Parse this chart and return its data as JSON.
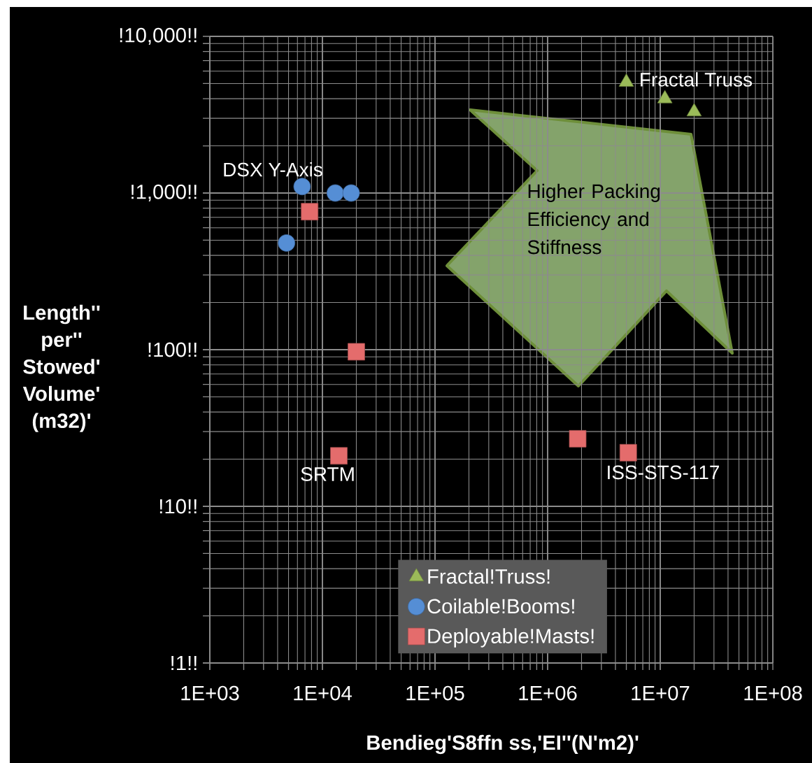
{
  "chart_data": {
    "type": "scatter",
    "xlabel": "Bendieg'S8ffn  ss,'EI''(N'm2)'",
    "ylabel": "Length'' per'' Stowed' Volume' (m32)'",
    "log": "xy",
    "grid": true,
    "legend": "bottom",
    "xlim": [
      1000,
      100000000
    ],
    "xticks": [
      {
        "value": 1000,
        "label": "1E+03"
      },
      {
        "value": 10000,
        "label": "1E+04"
      },
      {
        "value": 100000,
        "label": "1E+05"
      },
      {
        "value": 1000000,
        "label": "1E+06"
      },
      {
        "value": 10000000,
        "label": "1E+07"
      },
      {
        "value": 100000000,
        "label": "1E+08"
      }
    ],
    "ylim": [
      1,
      10000
    ],
    "yticks": [
      {
        "value": 1,
        "label": "!1!!"
      },
      {
        "value": 10,
        "label": "!10!!"
      },
      {
        "value": 100,
        "label": "!100!!"
      },
      {
        "value": 1000,
        "label": "!1,000!!"
      },
      {
        "value": 10000,
        "label": "!10,000!!"
      }
    ],
    "series": [
      {
        "name": "Fractal!Truss!",
        "color": "#9bbb59",
        "marker": "triangle",
        "x": [
          5000000,
          11000000,
          20000000
        ],
        "values": [
          5100,
          4000,
          3300
        ]
      },
      {
        "name": "Coilable!Booms!",
        "color": "#558ed5",
        "marker": "circle",
        "x": [
          6600,
          13000,
          18000,
          4800
        ],
        "values": [
          1100,
          1000,
          1000,
          480
        ]
      },
      {
        "name": "Deployable!Masts!",
        "color": "#e46c6c",
        "marker": "square",
        "x": [
          7700,
          20000,
          14000,
          1850000,
          5200000
        ],
        "values": [
          760,
          97,
          21,
          27,
          22
        ]
      }
    ],
    "annotations": [
      {
        "text": "Fractal Truss",
        "x": 5000000,
        "y": 5100
      },
      {
        "text": "DSX Y-Axis",
        "x": 6600,
        "y": 1100
      },
      {
        "text": "SRTM",
        "x": 14000,
        "y": 21
      },
      {
        "text": "ISS-STS-117",
        "x": 5200000,
        "y": 22
      },
      "Higher Packing Efficiency and Stiffness"
    ]
  }
}
